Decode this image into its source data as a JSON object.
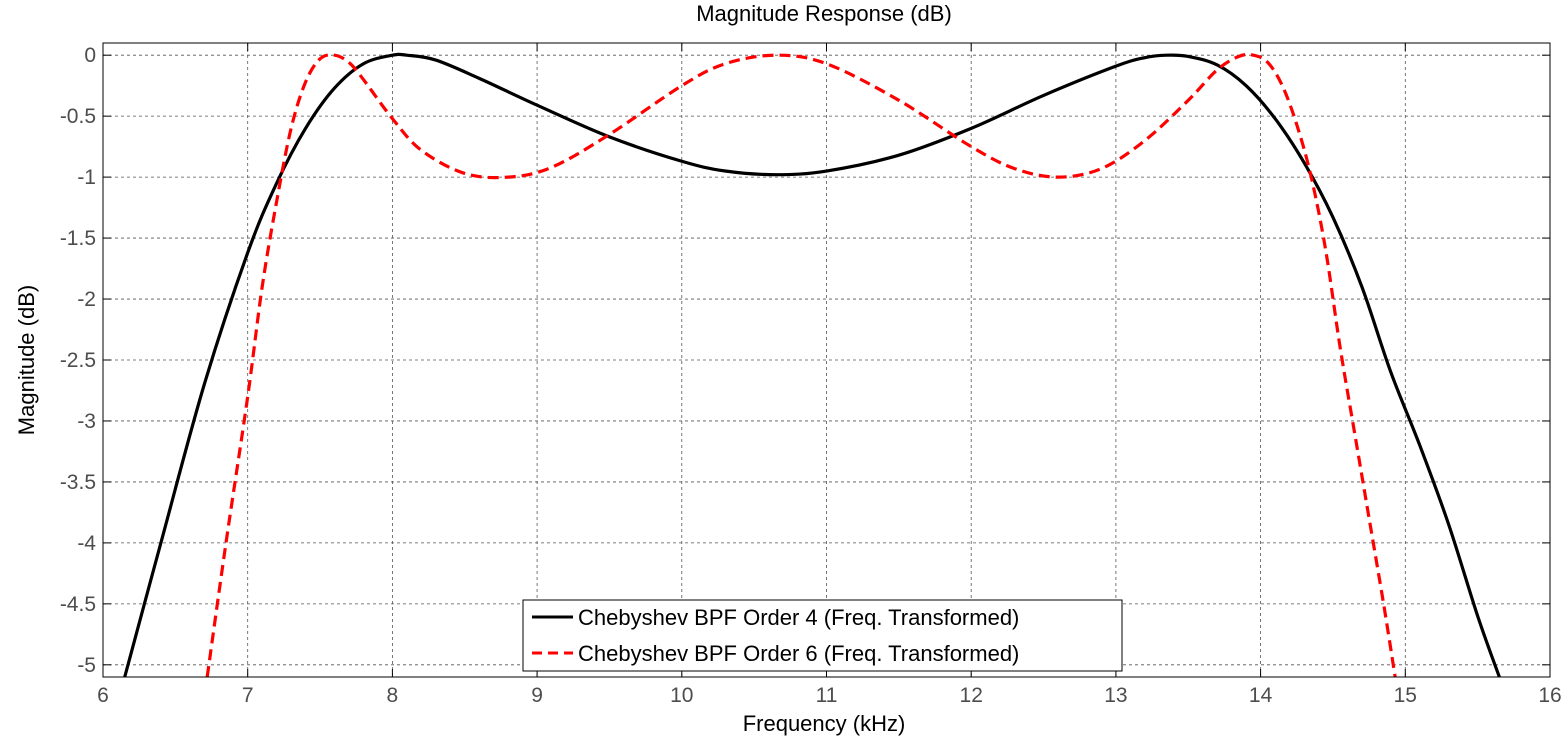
{
  "chart_data": {
    "type": "line",
    "title": "Magnitude Response (dB)",
    "xlabel": "Frequency (kHz)",
    "ylabel": "Magnitude (dB)",
    "xlim": [
      6,
      16
    ],
    "ylim": [
      -5.1,
      0.1
    ],
    "xticks": [
      6,
      7,
      8,
      9,
      10,
      11,
      12,
      13,
      14,
      15,
      16
    ],
    "xtick_labels": [
      "6",
      "7",
      "8",
      "9",
      "10",
      "11",
      "12",
      "13",
      "14",
      "15",
      "16"
    ],
    "yticks": [
      0,
      -0.5,
      -1,
      -1.5,
      -2,
      -2.5,
      -3,
      -3.5,
      -4,
      -4.5,
      -5
    ],
    "ytick_labels": [
      "0",
      "-0.5",
      "-1",
      "-1.5",
      "-2",
      "-2.5",
      "-3",
      "-3.5",
      "-4",
      "-4.5",
      "-5"
    ],
    "grid": true,
    "legend_position": "bottom-center",
    "series": [
      {
        "name": "Chebyshev BPF Order 4 (Freq. Transformed)",
        "color": "#000000",
        "style": "solid",
        "x": [
          6.15,
          6.4,
          6.7,
          7.0,
          7.2,
          7.4,
          7.6,
          7.8,
          8.0,
          8.1,
          8.3,
          8.6,
          9.0,
          9.5,
          10.0,
          10.3,
          10.65,
          11.0,
          11.5,
          12.0,
          12.5,
          13.0,
          13.2,
          13.35,
          13.5,
          13.7,
          13.9,
          14.1,
          14.3,
          14.5,
          14.7,
          14.9,
          15.1,
          15.3,
          15.5,
          15.65
        ],
        "y": [
          -5.1,
          -4.0,
          -2.7,
          -1.62,
          -1.05,
          -0.6,
          -0.27,
          -0.07,
          0.0,
          0.0,
          -0.04,
          -0.19,
          -0.41,
          -0.67,
          -0.87,
          -0.95,
          -0.98,
          -0.95,
          -0.82,
          -0.6,
          -0.33,
          -0.09,
          -0.02,
          0.0,
          -0.01,
          -0.08,
          -0.25,
          -0.52,
          -0.88,
          -1.33,
          -1.9,
          -2.6,
          -3.2,
          -3.85,
          -4.6,
          -5.1
        ]
      },
      {
        "name": "Chebyshev BPF Order 6 (Freq. Transformed)",
        "color": "#ff0000",
        "style": "dashed",
        "x": [
          6.72,
          6.85,
          7.0,
          7.1,
          7.2,
          7.3,
          7.4,
          7.5,
          7.6,
          7.7,
          7.8,
          8.0,
          8.2,
          8.5,
          8.8,
          9.1,
          9.5,
          10.0,
          10.3,
          10.65,
          11.0,
          11.5,
          12.0,
          12.3,
          12.6,
          12.9,
          13.2,
          13.5,
          13.7,
          13.85,
          13.95,
          14.05,
          14.15,
          14.25,
          14.35,
          14.45,
          14.55,
          14.65,
          14.75,
          14.85,
          14.93
        ],
        "y": [
          -5.1,
          -4.0,
          -2.8,
          -1.9,
          -1.2,
          -0.6,
          -0.22,
          -0.03,
          0.0,
          -0.06,
          -0.2,
          -0.52,
          -0.78,
          -0.97,
          -1.0,
          -0.92,
          -0.65,
          -0.25,
          -0.07,
          0.0,
          -0.07,
          -0.37,
          -0.75,
          -0.93,
          -1.0,
          -0.93,
          -0.7,
          -0.37,
          -0.12,
          -0.01,
          0.0,
          -0.06,
          -0.25,
          -0.57,
          -1.0,
          -1.6,
          -2.4,
          -3.1,
          -3.8,
          -4.5,
          -5.1
        ]
      }
    ]
  }
}
